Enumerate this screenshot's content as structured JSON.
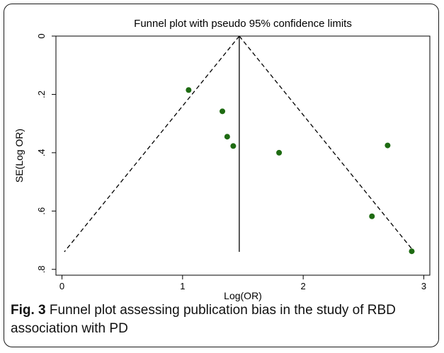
{
  "figure": {
    "caption_label": "Fig. 3",
    "caption_text": "Funnel plot assessing publication bias in the study of RBD association with PD"
  },
  "chart_data": {
    "type": "scatter",
    "title": "Funnel plot with pseudo 95% confidence limits",
    "xlabel": "Log(OR)",
    "ylabel": "SE(Log OR)",
    "xlim": [
      -0.05,
      3.05
    ],
    "ylim": [
      0,
      0.82
    ],
    "y_reversed": true,
    "x_ticks": [
      0,
      1,
      2,
      3
    ],
    "y_ticks": [
      0,
      0.2,
      0.4,
      0.6,
      0.8
    ],
    "x_tick_labels": [
      "0",
      "1",
      "2",
      "3"
    ],
    "y_tick_labels": [
      "0",
      ".2",
      ".4",
      ".6",
      ".8"
    ],
    "pooled_estimate": 1.47,
    "se_max": 0.74,
    "confidence_z": 1.96,
    "grid": false,
    "marker_color": "#1e6b12",
    "points": [
      {
        "x": 1.05,
        "y": 0.185
      },
      {
        "x": 1.33,
        "y": 0.258
      },
      {
        "x": 1.37,
        "y": 0.345
      },
      {
        "x": 1.42,
        "y": 0.377
      },
      {
        "x": 1.8,
        "y": 0.4
      },
      {
        "x": 2.7,
        "y": 0.375
      },
      {
        "x": 2.57,
        "y": 0.618
      },
      {
        "x": 2.9,
        "y": 0.738
      }
    ]
  }
}
